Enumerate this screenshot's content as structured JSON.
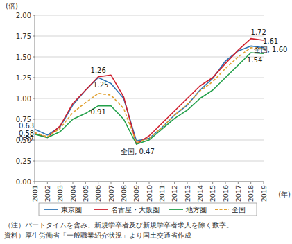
{
  "chart_data": {
    "type": "line",
    "y_unit": "(倍)",
    "x_label": "(年)",
    "x": [
      2001,
      2002,
      2003,
      2004,
      2005,
      2006,
      2007,
      2008,
      2009,
      2010,
      2011,
      2012,
      2013,
      2014,
      2015,
      2016,
      2017,
      2018,
      2019
    ],
    "xlim": [
      2001,
      2019
    ],
    "xticks": [
      2001,
      2002,
      2003,
      2004,
      2005,
      2006,
      2007,
      2008,
      2009,
      2010,
      2011,
      2012,
      2013,
      2014,
      2015,
      2016,
      2017,
      2018,
      2019
    ],
    "ylim": [
      0,
      2
    ],
    "yticks": [
      {
        "value": 0,
        "label": "0.00"
      },
      {
        "value": 0.25,
        "label": "0.25"
      },
      {
        "value": 0.5,
        "label": "0.50"
      },
      {
        "value": 0.75,
        "label": "0.75"
      },
      {
        "value": 1,
        "label": "1.00"
      },
      {
        "value": 1.25,
        "label": "1.25"
      },
      {
        "value": 1.5,
        "label": "1.50"
      },
      {
        "value": 1.75,
        "label": "1.75"
      },
      {
        "value": 2,
        "label": "2.00"
      }
    ],
    "grid": true,
    "legend": "bottom",
    "series": [
      {
        "name": "東京圏",
        "color": "#2e75b6",
        "line_style": "solid",
        "values": [
          0.63,
          0.56,
          0.66,
          0.92,
          1.1,
          1.25,
          1.18,
          1.0,
          0.49,
          0.52,
          0.65,
          0.8,
          0.92,
          1.1,
          1.24,
          1.45,
          1.57,
          1.63,
          1.61
        ]
      },
      {
        "name": "名古屋・大阪圏",
        "color": "#d0202e",
        "line_style": "solid",
        "values": [
          0.58,
          0.53,
          0.67,
          0.94,
          1.1,
          1.26,
          1.28,
          1.02,
          0.45,
          0.55,
          0.7,
          0.85,
          1.0,
          1.15,
          1.25,
          1.42,
          1.58,
          1.72,
          1.7
        ]
      },
      {
        "name": "地方圏",
        "color": "#22a04a",
        "line_style": "solid",
        "values": [
          0.57,
          0.53,
          0.6,
          0.75,
          0.82,
          0.91,
          0.91,
          0.75,
          0.45,
          0.5,
          0.63,
          0.76,
          0.86,
          1.0,
          1.1,
          1.25,
          1.4,
          1.55,
          1.54
        ]
      },
      {
        "name": "全国",
        "color": "#e0a030",
        "line_style": "dashed",
        "values": [
          0.59,
          0.54,
          0.64,
          0.83,
          0.95,
          1.06,
          1.04,
          0.88,
          0.47,
          0.52,
          0.65,
          0.8,
          0.93,
          1.09,
          1.2,
          1.36,
          1.5,
          1.61,
          1.6
        ]
      }
    ],
    "annotations": [
      {
        "text": "0.63",
        "x": 2000.35,
        "y": 0.67
      },
      {
        "text": "0.58",
        "x": 2000.35,
        "y": 0.58
      },
      {
        "text": "0.57",
        "x": 2000.35,
        "y": 0.51
      },
      {
        "text": "1.26",
        "x": 2006.0,
        "y": 1.34
      },
      {
        "text": "1.25",
        "x": 2006.2,
        "y": 1.16
      },
      {
        "text": "0.91",
        "x": 2006.0,
        "y": 0.84
      },
      {
        "text": "全国, 0.47",
        "x": 2009.1,
        "y": 0.36
      },
      {
        "text": "1.72",
        "x": 2018.6,
        "y": 1.8
      },
      {
        "text": "1.61",
        "x": 2019.55,
        "y": 1.69
      },
      {
        "text": "全国, 1.60",
        "x": 2019.55,
        "y": 1.59
      },
      {
        "text": "1.54",
        "x": 2018.3,
        "y": 1.46
      }
    ],
    "notes": [
      "（注）パートタイムを含み、新規学卒者及び新規学卒者求人を除く数字。",
      "資料）厚生労働省「一般職業紹介状況」より国土交通省作成"
    ]
  }
}
